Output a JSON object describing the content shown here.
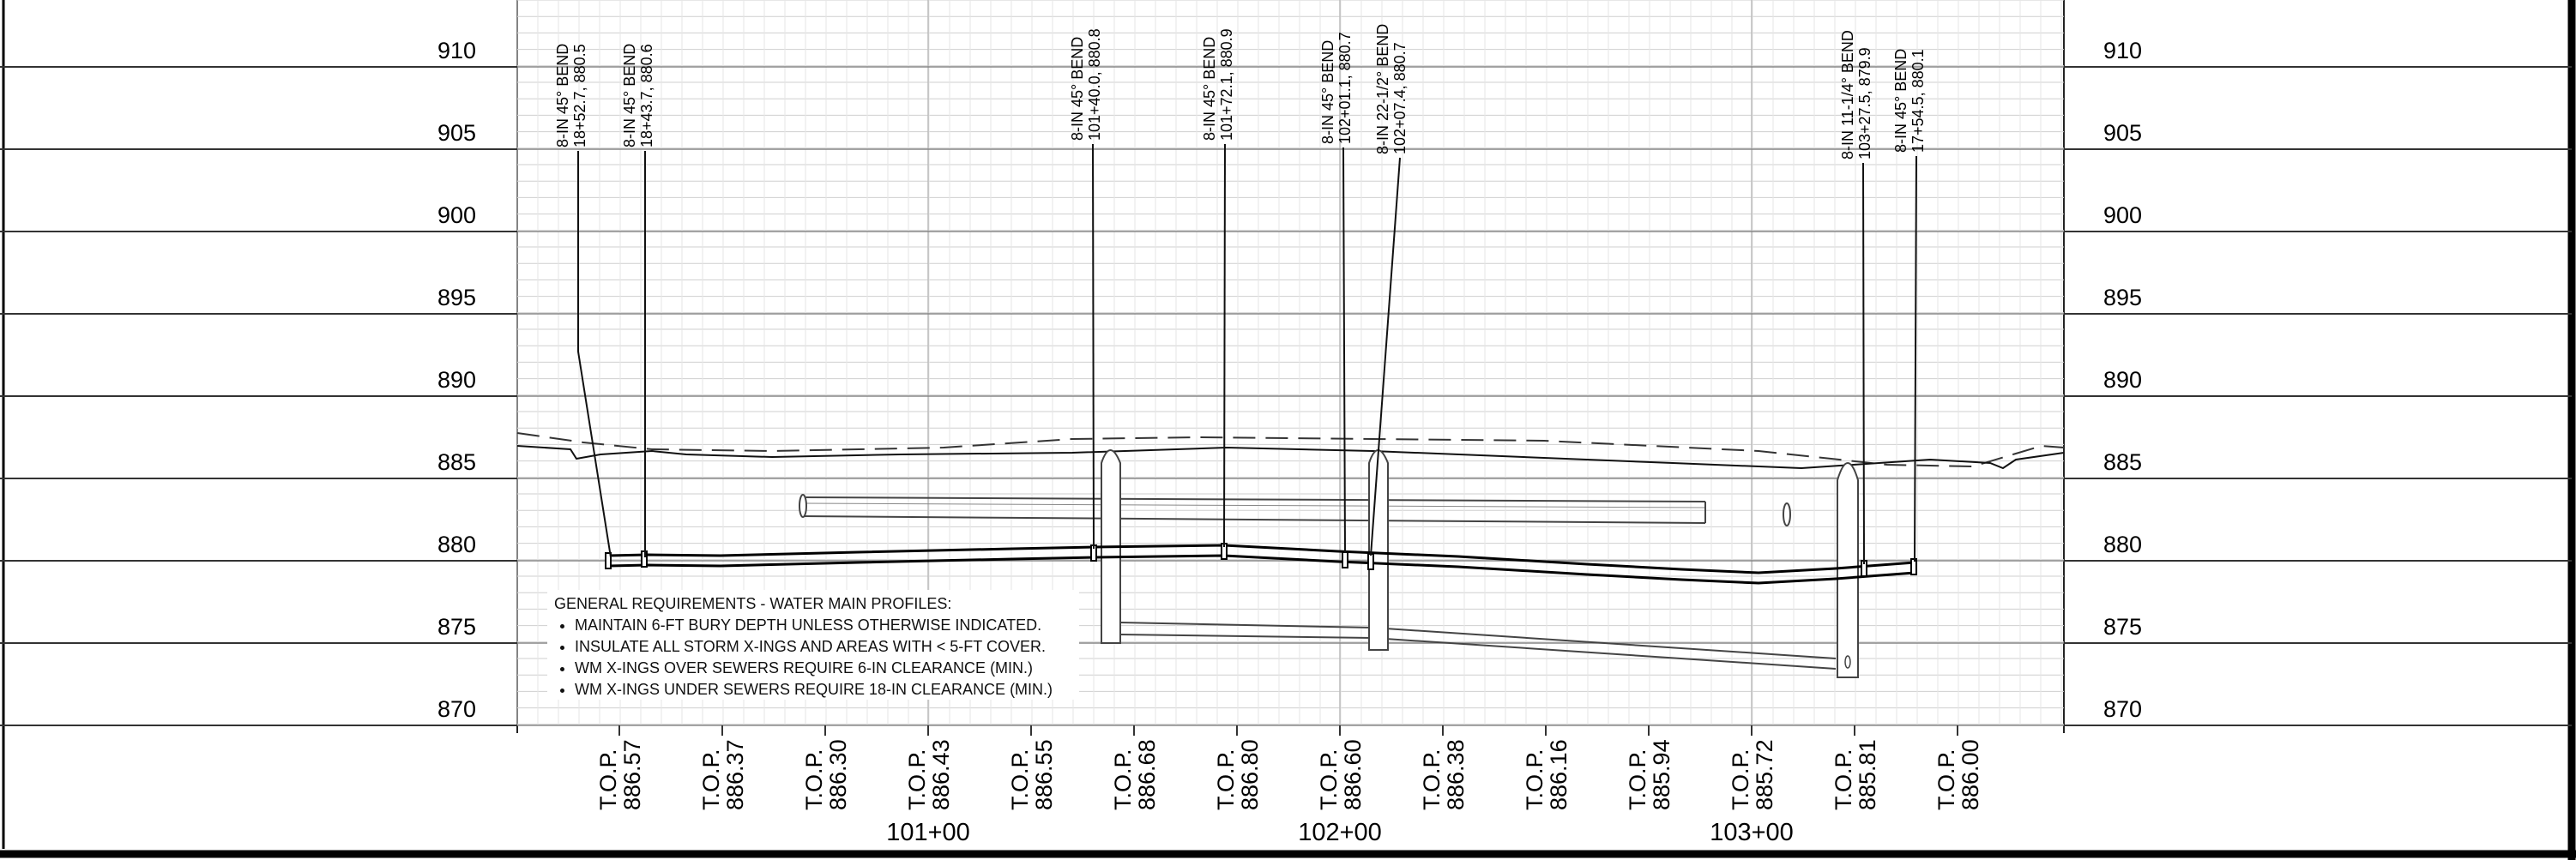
{
  "elevation_labels": [
    "910",
    "905",
    "900",
    "895",
    "890",
    "885",
    "880",
    "875",
    "870"
  ],
  "callouts": [
    {
      "line1": "8-IN 45° BEND",
      "line2": "18+52.7, 880.5"
    },
    {
      "line1": "8-IN 45° BEND",
      "line2": "18+43.7, 880.6"
    },
    {
      "line1": "8-IN 45° BEND",
      "line2": "101+40.0, 880.8"
    },
    {
      "line1": "8-IN 45° BEND",
      "line2": "101+72.1, 880.9"
    },
    {
      "line1": "8-IN 45° BEND",
      "line2": "102+01.1, 880.7"
    },
    {
      "line1": "8-IN 22-1/2° BEND",
      "line2": "102+07.4, 880.7"
    },
    {
      "line1": "8-IN 11-1/4° BEND",
      "line2": "103+27.5, 879.9"
    },
    {
      "line1": "8-IN 45° BEND",
      "line2": "17+54.5, 880.1"
    }
  ],
  "top_labels": [
    {
      "prefix": "T.O.P.",
      "value": "886.57"
    },
    {
      "prefix": "T.O.P.",
      "value": "886.37"
    },
    {
      "prefix": "T.O.P.",
      "value": "886.30"
    },
    {
      "prefix": "T.O.P.",
      "value": "886.43"
    },
    {
      "prefix": "T.O.P.",
      "value": "886.55"
    },
    {
      "prefix": "T.O.P.",
      "value": "886.68"
    },
    {
      "prefix": "T.O.P.",
      "value": "886.80"
    },
    {
      "prefix": "T.O.P.",
      "value": "886.60"
    },
    {
      "prefix": "T.O.P.",
      "value": "886.38"
    },
    {
      "prefix": "T.O.P.",
      "value": "886.16"
    },
    {
      "prefix": "T.O.P.",
      "value": "885.94"
    },
    {
      "prefix": "T.O.P.",
      "value": "885.72"
    },
    {
      "prefix": "T.O.P.",
      "value": "885.81"
    },
    {
      "prefix": "T.O.P.",
      "value": "886.00"
    }
  ],
  "stations": [
    "101+00",
    "102+00",
    "103+00"
  ],
  "notes": {
    "title": "GENERAL REQUIREMENTS - WATER MAIN PROFILES:",
    "items": [
      "MAINTAIN 6-FT BURY DEPTH UNLESS OTHERWISE INDICATED.",
      "INSULATE ALL STORM X-INGS AND AREAS WITH < 5-FT COVER.",
      "WM X-INGS OVER SEWERS REQUIRE 6-IN CLEARANCE (MIN.)",
      "WM X-INGS UNDER SEWERS REQUIRE 18-IN CLEARANCE (MIN.)"
    ]
  }
}
